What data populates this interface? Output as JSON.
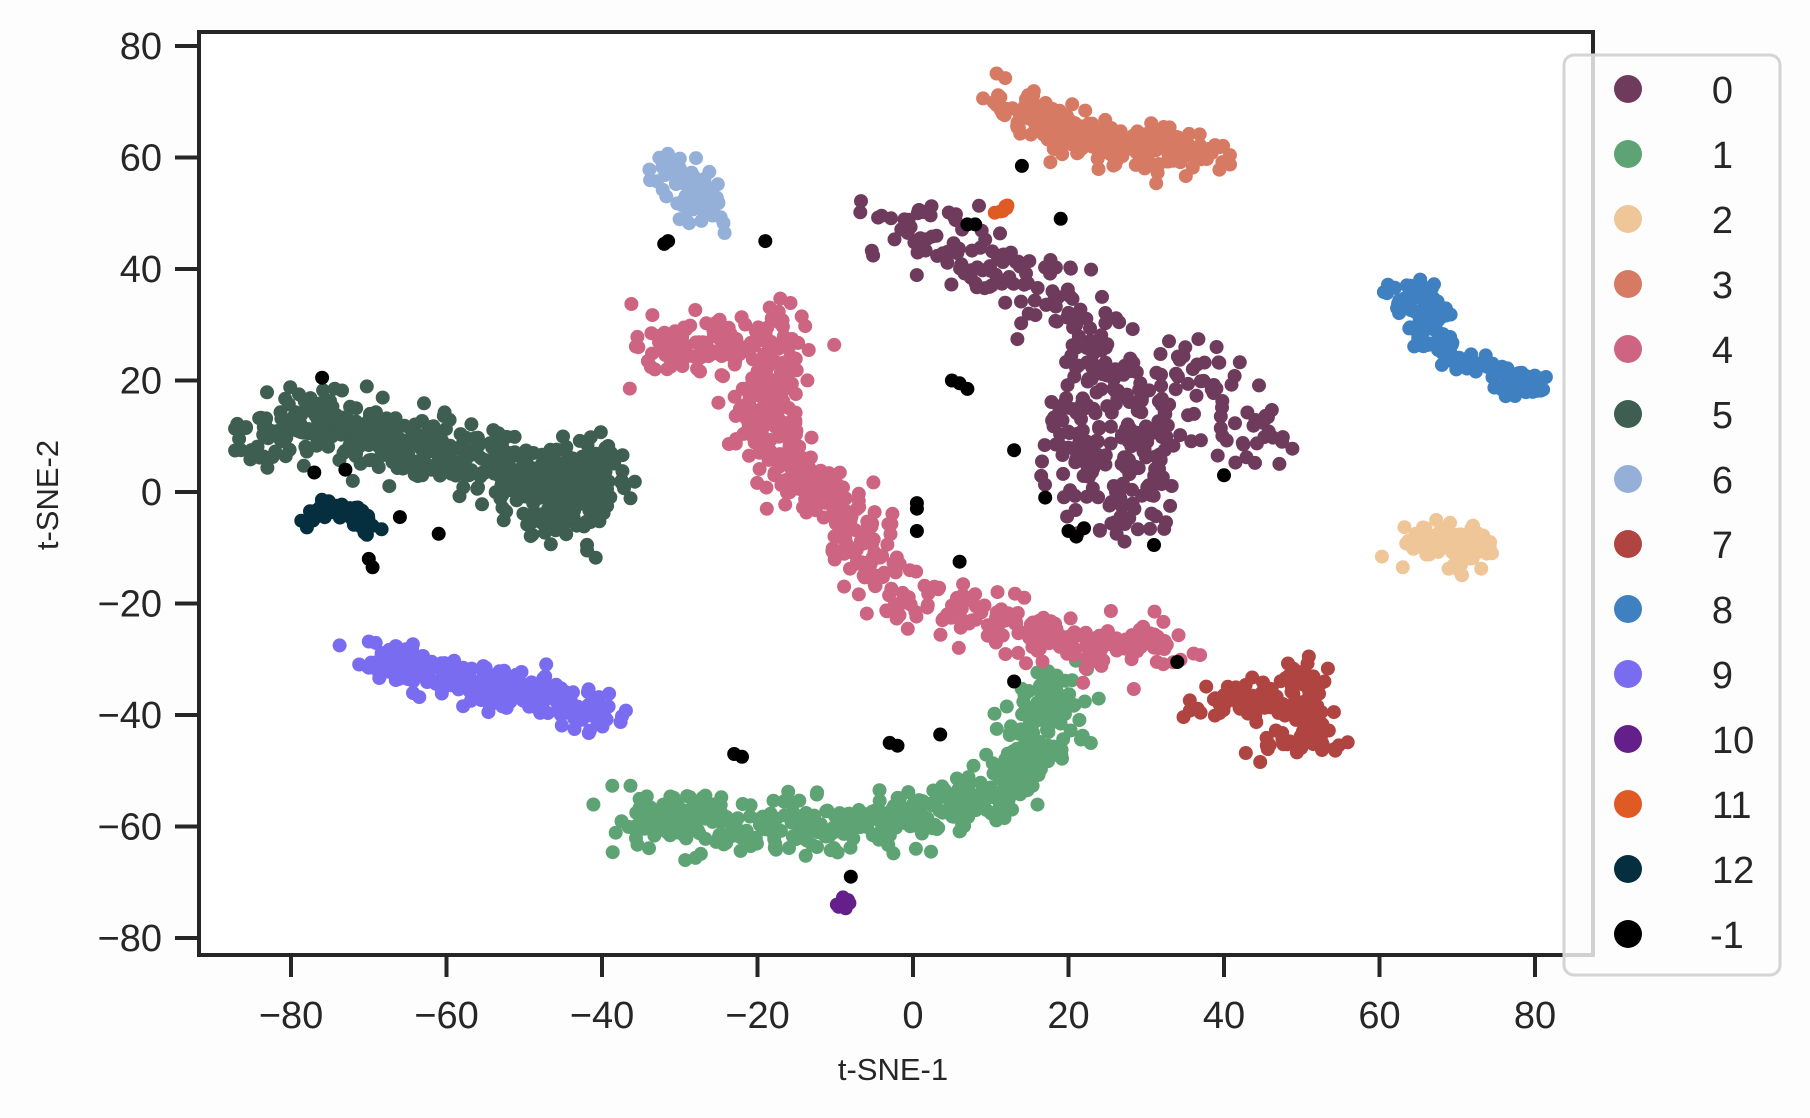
{
  "chart_data": {
    "type": "scatter",
    "title": "",
    "xlabel": "t-SNE-1",
    "ylabel": "t-SNE-2",
    "xlim": [
      -92,
      88
    ],
    "ylim": [
      -83,
      83
    ],
    "xticks": [
      -80,
      -60,
      -40,
      -20,
      0,
      20,
      40,
      60,
      80
    ],
    "yticks": [
      80,
      60,
      40,
      20,
      0,
      -20,
      -40,
      -60,
      -80
    ],
    "xtick_labels": [
      "−80",
      "−60",
      "−40",
      "−20",
      "0",
      "20",
      "40",
      "60",
      "80"
    ],
    "ytick_labels": [
      "80",
      "60",
      "40",
      "20",
      "0",
      "−20",
      "−40",
      "−60",
      "−80"
    ],
    "grid": false,
    "legend_position": "upper right, outside plot (overlapping right spine)",
    "legend_entries": [
      "0",
      "1",
      "2",
      "3",
      "4",
      "5",
      "6",
      "7",
      "8",
      "9",
      "10",
      "11",
      "12",
      "-1"
    ],
    "series": [
      {
        "name": "0",
        "color": "#6f3b5c",
        "count": 420,
        "path": [
          [
            -4,
            44
          ],
          [
            0,
            47
          ],
          [
            6,
            42
          ],
          [
            14,
            38
          ],
          [
            20,
            33
          ],
          [
            22,
            25
          ],
          [
            28,
            20
          ],
          [
            30,
            12
          ],
          [
            28,
            4
          ],
          [
            26,
            -4
          ],
          [
            30,
            -6
          ]
        ],
        "spread": 4.5,
        "extra_blobs": [
          [
            [
              33,
              26
            ],
            [
              40,
              18
            ],
            [
              45,
              12
            ],
            [
              44,
              8
            ]
          ],
          [
            [
              18,
              16
            ],
            [
              20,
              10
            ],
            [
              24,
              2
            ]
          ]
        ]
      },
      {
        "name": "1",
        "color": "#5ea373",
        "count": 520,
        "path": [
          [
            -36,
            -57
          ],
          [
            -28,
            -60
          ],
          [
            -20,
            -61
          ],
          [
            -12,
            -60
          ],
          [
            -4,
            -59
          ],
          [
            4,
            -57
          ],
          [
            10,
            -54
          ],
          [
            15,
            -48
          ],
          [
            17,
            -40
          ],
          [
            19,
            -34
          ]
        ],
        "spread": 3.6
      },
      {
        "name": "2",
        "color": "#efc698",
        "count": 90,
        "path": [
          [
            64,
            -10
          ],
          [
            68,
            -8
          ],
          [
            72,
            -10
          ],
          [
            70,
            -13
          ]
        ],
        "spread": 2.4,
        "outliers": [
          [
            63,
            -13.5
          ]
        ]
      },
      {
        "name": "3",
        "color": "#d77a64",
        "count": 260,
        "path": [
          [
            12,
            70
          ],
          [
            16,
            68
          ],
          [
            20,
            64
          ],
          [
            26,
            62
          ],
          [
            32,
            62
          ],
          [
            38,
            61
          ]
        ],
        "spread": 2.8
      },
      {
        "name": "4",
        "color": "#cc6482",
        "count": 620,
        "path": [
          [
            -34,
            24
          ],
          [
            -28,
            27
          ],
          [
            -22,
            26
          ],
          [
            -18,
            30
          ],
          [
            -18,
            20
          ],
          [
            -20,
            12
          ],
          [
            -16,
            4
          ],
          [
            -10,
            -2
          ],
          [
            -7,
            -10
          ],
          [
            -3,
            -16
          ],
          [
            2,
            -20
          ],
          [
            8,
            -22
          ],
          [
            14,
            -25
          ],
          [
            20,
            -27
          ],
          [
            28,
            -27
          ],
          [
            33,
            -29
          ]
        ],
        "spread": 3.4
      },
      {
        "name": "5",
        "color": "#3d5e51",
        "count": 640,
        "path": [
          [
            -83,
            8
          ],
          [
            -78,
            12
          ],
          [
            -72,
            12
          ],
          [
            -66,
            9
          ],
          [
            -60,
            7
          ],
          [
            -54,
            4
          ],
          [
            -48,
            2
          ],
          [
            -44,
            -1
          ],
          [
            -42,
            6
          ],
          [
            -46,
            -6
          ]
        ],
        "spread": 4.2
      },
      {
        "name": "6",
        "color": "#94b0d8",
        "count": 90,
        "path": [
          [
            -31,
            58
          ],
          [
            -29,
            55
          ],
          [
            -27,
            53
          ],
          [
            -26,
            50
          ]
        ],
        "spread": 2.4
      },
      {
        "name": "7",
        "color": "#b04440",
        "count": 150,
        "path": [
          [
            37,
            -40
          ],
          [
            42,
            -36
          ],
          [
            46,
            -40
          ],
          [
            50,
            -33
          ],
          [
            50,
            -40
          ],
          [
            54,
            -44
          ],
          [
            45,
            -46
          ]
        ],
        "spread": 2.4
      },
      {
        "name": "8",
        "color": "#3f80c1",
        "count": 170,
        "path": [
          [
            62,
            34
          ],
          [
            64,
            36
          ],
          [
            67,
            34
          ],
          [
            66,
            30
          ],
          [
            68,
            25
          ],
          [
            72,
            23
          ],
          [
            76,
            21
          ]
        ],
        "spread": 2.0,
        "extra_blobs": [
          [
            [
              78.5,
              19
            ],
            [
              79,
              20
            ]
          ]
        ]
      },
      {
        "name": "9",
        "color": "#7a6cf0",
        "count": 300,
        "path": [
          [
            -70,
            -30
          ],
          [
            -64,
            -32
          ],
          [
            -58,
            -33
          ],
          [
            -52,
            -36
          ],
          [
            -46,
            -37
          ],
          [
            -40,
            -40
          ]
        ],
        "spread": 2.4
      },
      {
        "name": "10",
        "color": "#651f8a",
        "count": 10,
        "path": [
          [
            -10,
            -74.5
          ],
          [
            -8.5,
            -74
          ]
        ],
        "spread": 0.6
      },
      {
        "name": "11",
        "color": "#e05a24",
        "count": 6,
        "path": [
          [
            10.5,
            50
          ],
          [
            12.5,
            51.5
          ]
        ],
        "spread": 0.5
      },
      {
        "name": "12",
        "color": "#052e3f",
        "count": 45,
        "path": [
          [
            -79,
            -6
          ],
          [
            -76,
            -3
          ],
          [
            -73,
            -3
          ],
          [
            -70,
            -5
          ],
          [
            -71,
            -7
          ]
        ],
        "spread": 1.1
      },
      {
        "name": "-1",
        "color": "#000000",
        "count": 0,
        "outliers": [
          [
            -76,
            20.5
          ],
          [
            -77,
            3.5
          ],
          [
            -73,
            4
          ],
          [
            -61,
            -7.5
          ],
          [
            -66,
            -4.5
          ],
          [
            -70,
            -12
          ],
          [
            -69.5,
            -13.5
          ],
          [
            -32,
            44.5
          ],
          [
            -31.5,
            45
          ],
          [
            -19,
            45
          ],
          [
            -23,
            -47
          ],
          [
            -22,
            -47.5
          ],
          [
            -3,
            -45
          ],
          [
            -2,
            -45.5
          ],
          [
            3.5,
            -43.5
          ],
          [
            13,
            -34
          ],
          [
            -8,
            -69
          ],
          [
            0.5,
            -2
          ],
          [
            0.5,
            -3
          ],
          [
            0.5,
            -7
          ],
          [
            6,
            -12.5
          ],
          [
            5,
            20
          ],
          [
            6,
            19.5
          ],
          [
            7,
            18.5
          ],
          [
            13,
            7.5
          ],
          [
            17,
            -1
          ],
          [
            7,
            48
          ],
          [
            8,
            48
          ],
          [
            14,
            58.5
          ],
          [
            19,
            49
          ],
          [
            20,
            -7
          ],
          [
            21,
            -8
          ],
          [
            22,
            -6.5
          ],
          [
            31,
            -9.5
          ],
          [
            40,
            3
          ],
          [
            34,
            -30.5
          ]
        ]
      }
    ]
  },
  "legend": {
    "items": [
      {
        "label": "0",
        "color": "#6f3b5c"
      },
      {
        "label": "1",
        "color": "#5ea373"
      },
      {
        "label": "2",
        "color": "#efc698"
      },
      {
        "label": "3",
        "color": "#d77a64"
      },
      {
        "label": "4",
        "color": "#cc6482"
      },
      {
        "label": "5",
        "color": "#3d5e51"
      },
      {
        "label": "6",
        "color": "#94b0d8"
      },
      {
        "label": "7",
        "color": "#b04440"
      },
      {
        "label": "8",
        "color": "#3f80c1"
      },
      {
        "label": "9",
        "color": "#7a6cf0"
      },
      {
        "label": "10",
        "color": "#651f8a"
      },
      {
        "label": "11",
        "color": "#e05a24"
      },
      {
        "label": "12",
        "color": "#052e3f"
      },
      {
        "label": "-1",
        "color": "#000000"
      }
    ]
  },
  "axes": {
    "xlabel": "t-SNE-1",
    "ylabel": "t-SNE-2"
  },
  "colors": {
    "spine": "#262626",
    "legend_border": "#d4d4d4",
    "background": "#fefdfe"
  }
}
